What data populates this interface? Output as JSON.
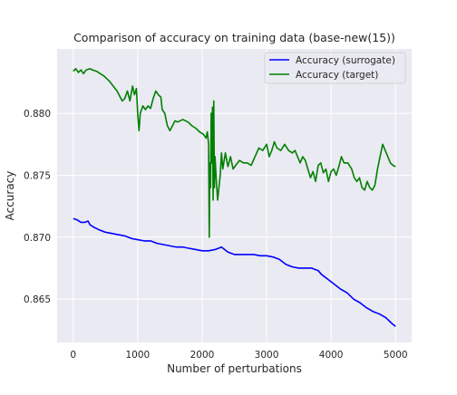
{
  "chart_data": {
    "type": "line",
    "title": "Comparison of accuracy on training data (base-new(15))",
    "xlabel": "Number of perturbations",
    "ylabel": "Accuracy",
    "xlim": [
      -250,
      5250
    ],
    "ylim": [
      0.8615,
      0.8852
    ],
    "xticks": [
      0,
      1000,
      2000,
      3000,
      4000,
      5000
    ],
    "yticks": [
      0.865,
      0.87,
      0.875,
      0.88
    ],
    "ytick_labels": [
      "0.865",
      "0.870",
      "0.875",
      "0.880"
    ],
    "grid": true,
    "legend_position": "top-right",
    "background": "#eaeaf2",
    "series": [
      {
        "name": "Accuracy (surrogate)",
        "color": "#0000ff",
        "points": [
          [
            0,
            0.8715
          ],
          [
            60,
            0.8714
          ],
          [
            120,
            0.8712
          ],
          [
            180,
            0.8712
          ],
          [
            230,
            0.8713
          ],
          [
            260,
            0.871
          ],
          [
            320,
            0.8708
          ],
          [
            400,
            0.8706
          ],
          [
            500,
            0.8704
          ],
          [
            600,
            0.8703
          ],
          [
            700,
            0.8702
          ],
          [
            800,
            0.8701
          ],
          [
            900,
            0.8699
          ],
          [
            1000,
            0.8698
          ],
          [
            1100,
            0.8697
          ],
          [
            1200,
            0.8697
          ],
          [
            1300,
            0.8695
          ],
          [
            1400,
            0.8694
          ],
          [
            1500,
            0.8693
          ],
          [
            1600,
            0.8692
          ],
          [
            1700,
            0.8692
          ],
          [
            1800,
            0.8691
          ],
          [
            1900,
            0.869
          ],
          [
            2000,
            0.8689
          ],
          [
            2100,
            0.8689
          ],
          [
            2200,
            0.869
          ],
          [
            2300,
            0.8692
          ],
          [
            2400,
            0.8688
          ],
          [
            2500,
            0.8686
          ],
          [
            2600,
            0.8686
          ],
          [
            2700,
            0.8686
          ],
          [
            2800,
            0.8686
          ],
          [
            2900,
            0.8685
          ],
          [
            3000,
            0.8685
          ],
          [
            3100,
            0.8684
          ],
          [
            3200,
            0.8682
          ],
          [
            3300,
            0.8678
          ],
          [
            3400,
            0.8676
          ],
          [
            3500,
            0.8675
          ],
          [
            3600,
            0.8675
          ],
          [
            3700,
            0.8675
          ],
          [
            3800,
            0.8673
          ],
          [
            3850,
            0.867
          ],
          [
            3950,
            0.8666
          ],
          [
            4050,
            0.8662
          ],
          [
            4150,
            0.8658
          ],
          [
            4250,
            0.8655
          ],
          [
            4350,
            0.865
          ],
          [
            4450,
            0.8647
          ],
          [
            4550,
            0.8643
          ],
          [
            4650,
            0.864
          ],
          [
            4750,
            0.8638
          ],
          [
            4850,
            0.8635
          ],
          [
            4950,
            0.863
          ],
          [
            5000,
            0.8628
          ]
        ]
      },
      {
        "name": "Accuracy (target)",
        "color": "#008000",
        "points": [
          [
            0,
            0.8834
          ],
          [
            40,
            0.8836
          ],
          [
            80,
            0.8833
          ],
          [
            120,
            0.8835
          ],
          [
            160,
            0.8832
          ],
          [
            200,
            0.8835
          ],
          [
            260,
            0.8836
          ],
          [
            300,
            0.8835
          ],
          [
            360,
            0.8834
          ],
          [
            420,
            0.8832
          ],
          [
            480,
            0.883
          ],
          [
            520,
            0.8828
          ],
          [
            560,
            0.8826
          ],
          [
            620,
            0.8822
          ],
          [
            680,
            0.8818
          ],
          [
            720,
            0.8814
          ],
          [
            760,
            0.881
          ],
          [
            800,
            0.8812
          ],
          [
            840,
            0.8818
          ],
          [
            880,
            0.881
          ],
          [
            920,
            0.8822
          ],
          [
            950,
            0.8815
          ],
          [
            980,
            0.882
          ],
          [
            1000,
            0.88
          ],
          [
            1020,
            0.8786
          ],
          [
            1040,
            0.88
          ],
          [
            1080,
            0.8806
          ],
          [
            1120,
            0.8803
          ],
          [
            1160,
            0.8806
          ],
          [
            1200,
            0.8804
          ],
          [
            1240,
            0.8812
          ],
          [
            1280,
            0.8818
          ],
          [
            1320,
            0.8815
          ],
          [
            1360,
            0.8813
          ],
          [
            1380,
            0.8803
          ],
          [
            1420,
            0.88
          ],
          [
            1460,
            0.879
          ],
          [
            1500,
            0.8786
          ],
          [
            1540,
            0.879
          ],
          [
            1580,
            0.8794
          ],
          [
            1620,
            0.8793
          ],
          [
            1700,
            0.8795
          ],
          [
            1780,
            0.8793
          ],
          [
            1840,
            0.879
          ],
          [
            1900,
            0.8788
          ],
          [
            1960,
            0.8785
          ],
          [
            2020,
            0.8783
          ],
          [
            2060,
            0.878
          ],
          [
            2080,
            0.8785
          ],
          [
            2100,
            0.8775
          ],
          [
            2110,
            0.87
          ],
          [
            2120,
            0.876
          ],
          [
            2130,
            0.874
          ],
          [
            2140,
            0.88
          ],
          [
            2150,
            0.876
          ],
          [
            2160,
            0.8805
          ],
          [
            2170,
            0.873
          ],
          [
            2180,
            0.881
          ],
          [
            2190,
            0.874
          ],
          [
            2200,
            0.8765
          ],
          [
            2220,
            0.8745
          ],
          [
            2240,
            0.873
          ],
          [
            2260,
            0.874
          ],
          [
            2280,
            0.875
          ],
          [
            2300,
            0.8768
          ],
          [
            2320,
            0.8755
          ],
          [
            2360,
            0.8768
          ],
          [
            2400,
            0.8757
          ],
          [
            2440,
            0.8765
          ],
          [
            2480,
            0.8755
          ],
          [
            2520,
            0.8758
          ],
          [
            2580,
            0.8762
          ],
          [
            2640,
            0.876
          ],
          [
            2700,
            0.876
          ],
          [
            2760,
            0.8758
          ],
          [
            2820,
            0.8765
          ],
          [
            2880,
            0.8772
          ],
          [
            2940,
            0.877
          ],
          [
            3000,
            0.8775
          ],
          [
            3040,
            0.8765
          ],
          [
            3080,
            0.877
          ],
          [
            3120,
            0.8777
          ],
          [
            3160,
            0.8772
          ],
          [
            3220,
            0.877
          ],
          [
            3280,
            0.8775
          ],
          [
            3340,
            0.877
          ],
          [
            3400,
            0.8768
          ],
          [
            3440,
            0.877
          ],
          [
            3480,
            0.8765
          ],
          [
            3520,
            0.876
          ],
          [
            3560,
            0.8765
          ],
          [
            3600,
            0.8762
          ],
          [
            3640,
            0.8755
          ],
          [
            3680,
            0.8748
          ],
          [
            3720,
            0.8753
          ],
          [
            3760,
            0.8745
          ],
          [
            3800,
            0.8758
          ],
          [
            3840,
            0.876
          ],
          [
            3880,
            0.8752
          ],
          [
            3920,
            0.8755
          ],
          [
            3960,
            0.8745
          ],
          [
            4000,
            0.8753
          ],
          [
            4040,
            0.8755
          ],
          [
            4080,
            0.875
          ],
          [
            4120,
            0.8757
          ],
          [
            4160,
            0.8765
          ],
          [
            4200,
            0.876
          ],
          [
            4260,
            0.876
          ],
          [
            4320,
            0.8755
          ],
          [
            4360,
            0.8748
          ],
          [
            4400,
            0.8745
          ],
          [
            4440,
            0.8748
          ],
          [
            4480,
            0.874
          ],
          [
            4520,
            0.8738
          ],
          [
            4560,
            0.8745
          ],
          [
            4600,
            0.874
          ],
          [
            4640,
            0.8738
          ],
          [
            4680,
            0.8742
          ],
          [
            4720,
            0.8755
          ],
          [
            4760,
            0.8765
          ],
          [
            4800,
            0.8775
          ],
          [
            4840,
            0.877
          ],
          [
            4880,
            0.8765
          ],
          [
            4920,
            0.876
          ],
          [
            4960,
            0.8758
          ],
          [
            5000,
            0.8757
          ]
        ]
      }
    ]
  }
}
